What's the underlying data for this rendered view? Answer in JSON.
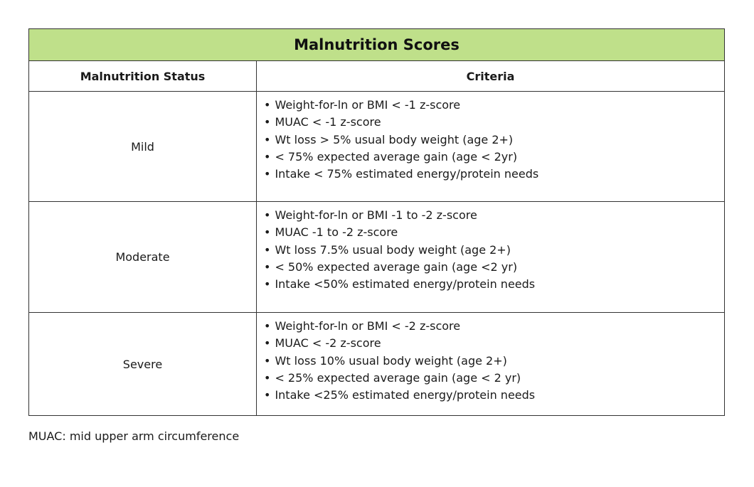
{
  "table": {
    "title": "Malnutrition Scores",
    "headers": {
      "status": "Malnutrition Status",
      "criteria": "Criteria"
    },
    "rows": [
      {
        "status": "Mild",
        "criteria": [
          "Weight-for-ln or BMI < -1 z-score",
          "MUAC < -1 z-score",
          "Wt loss > 5% usual body weight (age 2+)",
          "< 75% expected average gain (age < 2yr)",
          "Intake < 75% estimated energy/protein needs"
        ]
      },
      {
        "status": "Moderate",
        "criteria": [
          "Weight-for-ln or BMI -1 to -2 z-score",
          "MUAC -1 to -2 z-score",
          "Wt loss 7.5% usual body weight (age 2+)",
          "< 50% expected average gain (age <2 yr)",
          "Intake <50% estimated energy/protein needs"
        ]
      },
      {
        "status": "Severe",
        "criteria": [
          "Weight-for-ln or BMI < -2 z-score",
          "MUAC < -2 z-score",
          "Wt loss 10% usual body weight (age 2+)",
          "< 25% expected average gain (age < 2 yr)",
          "Intake <25% estimated energy/protein needs"
        ]
      }
    ]
  },
  "footnote": "MUAC: mid upper arm circumference",
  "colors": {
    "title_background": "#bfe08a",
    "border": "#333333"
  }
}
